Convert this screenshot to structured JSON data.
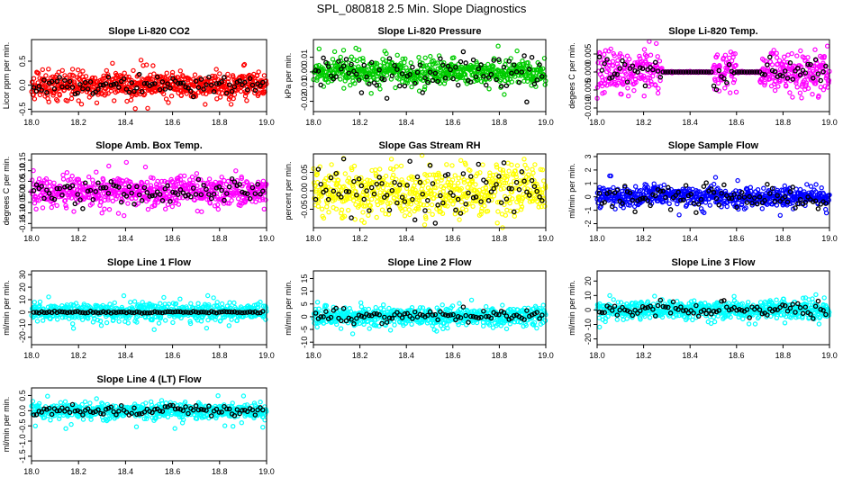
{
  "title": "SPL_080818  2.5 Min. Slope Diagnostics",
  "chart_data": [
    {
      "type": "scatter",
      "title": "Slope Li-820 CO2",
      "ylabel": "Licor ppm per min.",
      "color": "#ff0000",
      "xlim": [
        18.0,
        19.0
      ],
      "ylim": [
        -0.55,
        0.95
      ],
      "yticks": [
        -0.5,
        0.0,
        0.5
      ],
      "ytick_labels": [
        "-0.5",
        "0.0",
        "0.5"
      ],
      "xticks": [
        18.0,
        18.2,
        18.4,
        18.6,
        18.8,
        19.0
      ],
      "xtick_labels": [
        "18.0",
        "18.2",
        "18.4",
        "18.6",
        "18.8",
        "19.0"
      ],
      "spread": 0.14,
      "outlier": 0.5,
      "overlay_spread": 0.1,
      "seed": 11
    },
    {
      "type": "scatter",
      "title": "Slope Li-820 Pressure",
      "ylabel": "kPa per min.",
      "color": "#00cc00",
      "xlim": [
        18.0,
        19.0
      ],
      "ylim": [
        -0.027,
        0.022
      ],
      "yticks": [
        -0.02,
        -0.01,
        0.0,
        0.01
      ],
      "ytick_labels": [
        "-0.02",
        "-0.01",
        "0.00",
        "0.01"
      ],
      "xticks": [
        18.0,
        18.2,
        18.4,
        18.6,
        18.8,
        19.0
      ],
      "xtick_labels": [
        "18.0",
        "18.2",
        "18.4",
        "18.6",
        "18.8",
        "19.0"
      ],
      "spread": 0.004,
      "outlier": 0.018,
      "overlay_spread": 0.006,
      "seed": 23
    },
    {
      "type": "scatter",
      "title": "Slope Li-820 Temp.",
      "ylabel": "degees C per min.",
      "color": "#ff00ff",
      "xlim": [
        18.0,
        19.0
      ],
      "ylim": [
        -0.011,
        0.009
      ],
      "yticks": [
        -0.01,
        -0.005,
        0.0,
        0.005
      ],
      "ytick_labels": [
        "-0.010",
        "-0.005",
        "0.000",
        "0.005"
      ],
      "xticks": [
        18.0,
        18.2,
        18.4,
        18.6,
        18.8,
        19.0
      ],
      "xtick_labels": [
        "18.0",
        "18.2",
        "18.4",
        "18.6",
        "18.8",
        "19.0"
      ],
      "spread": 0.0028,
      "outlier": 0.008,
      "overlay_spread": 0.002,
      "seed": 37,
      "flat_ranges": [
        [
          18.28,
          18.5
        ],
        [
          18.6,
          18.7
        ]
      ]
    },
    {
      "type": "scatter",
      "title": "Slope Amb. Box Temp.",
      "ylabel": "degrees C per min.",
      "color": "#ff00ff",
      "xlim": [
        18.0,
        19.0
      ],
      "ylim": [
        -0.17,
        0.18
      ],
      "yticks": [
        -0.15,
        -0.1,
        -0.05,
        0.0,
        0.05,
        0.1,
        0.15
      ],
      "ytick_labels": [
        "-0.15",
        "-0.10",
        "-0.05",
        "0.00",
        "0.05",
        "0.10",
        "0.15"
      ],
      "xticks": [
        18.0,
        18.2,
        18.4,
        18.6,
        18.8,
        19.0
      ],
      "xtick_labels": [
        "18.0",
        "18.2",
        "18.4",
        "18.6",
        "18.8",
        "19.0"
      ],
      "spread": 0.035,
      "outlier": 0.14,
      "overlay_spread": 0.03,
      "seed": 41
    },
    {
      "type": "scatter",
      "title": "Slope Gas Stream RH",
      "ylabel": "percent per min.",
      "color": "#ffff00",
      "xlim": [
        18.0,
        19.0
      ],
      "ylim": [
        -0.1,
        0.1
      ],
      "yticks": [
        -0.05,
        0.0,
        0.05
      ],
      "ytick_labels": [
        "-0.05",
        "0.00",
        "0.05"
      ],
      "xticks": [
        18.0,
        18.2,
        18.4,
        18.6,
        18.8,
        19.0
      ],
      "xtick_labels": [
        "18.0",
        "18.2",
        "18.4",
        "18.6",
        "18.8",
        "19.0"
      ],
      "spread": 0.035,
      "outlier": 0.09,
      "overlay_spread": 0.04,
      "seed": 53
    },
    {
      "type": "scatter",
      "title": "Slope Sample Flow",
      "ylabel": "ml/min per min.",
      "color": "#0000ff",
      "xlim": [
        18.0,
        19.0
      ],
      "ylim": [
        -2.3,
        3.2
      ],
      "yticks": [
        -2,
        -1,
        0,
        1,
        2,
        3
      ],
      "ytick_labels": [
        "-2",
        "-1",
        "0",
        "1",
        "2",
        "3"
      ],
      "xticks": [
        18.0,
        18.2,
        18.4,
        18.6,
        18.8,
        19.0
      ],
      "xtick_labels": [
        "18.0",
        "18.2",
        "18.4",
        "18.6",
        "18.8",
        "19.0"
      ],
      "spread": 0.35,
      "outlier": 1.6,
      "overlay_spread": 0.5,
      "seed": 67
    },
    {
      "type": "scatter",
      "title": "Slope Line 1 Flow",
      "ylabel": "ml/min per min.",
      "color": "#00ffff",
      "xlim": [
        18.0,
        19.0
      ],
      "ylim": [
        -26,
        33
      ],
      "yticks": [
        -20,
        -10,
        0,
        10,
        20,
        30
      ],
      "ytick_labels": [
        "-20",
        "-10",
        "0",
        "10",
        "20",
        "30"
      ],
      "xticks": [
        18.0,
        18.2,
        18.4,
        18.6,
        18.8,
        19.0
      ],
      "xtick_labels": [
        "18.0",
        "18.2",
        "18.4",
        "18.6",
        "18.8",
        "19.0"
      ],
      "spread": 3.5,
      "outlier": 15,
      "overlay_spread": 0.4,
      "seed": 71
    },
    {
      "type": "scatter",
      "title": "Slope Line 2 Flow",
      "ylabel": "ml/min per min.",
      "color": "#00ffff",
      "xlim": [
        18.0,
        19.0
      ],
      "ylim": [
        -11,
        18
      ],
      "yticks": [
        -10,
        -5,
        0,
        5,
        10,
        15
      ],
      "ytick_labels": [
        "-10",
        "-5",
        "0",
        "5",
        "10",
        "15"
      ],
      "xticks": [
        18.0,
        18.2,
        18.4,
        18.6,
        18.8,
        19.0
      ],
      "xtick_labels": [
        "18.0",
        "18.2",
        "18.4",
        "18.6",
        "18.8",
        "19.0"
      ],
      "spread": 1.8,
      "outlier": 7,
      "overlay_spread": 1.2,
      "seed": 83
    },
    {
      "type": "scatter",
      "title": "Slope Line 3 Flow",
      "ylabel": "ml/min per min.",
      "color": "#00ffff",
      "xlim": [
        18.0,
        19.0
      ],
      "ylim": [
        -24,
        27
      ],
      "yticks": [
        -20,
        -10,
        0,
        10,
        20
      ],
      "ytick_labels": [
        "-20",
        "-10",
        "0",
        "10",
        "20"
      ],
      "xticks": [
        18.0,
        18.2,
        18.4,
        18.6,
        18.8,
        19.0
      ],
      "xtick_labels": [
        "18.0",
        "18.2",
        "18.4",
        "18.6",
        "18.8",
        "19.0"
      ],
      "spread": 3.2,
      "outlier": 12,
      "overlay_spread": 2.5,
      "seed": 97
    },
    {
      "type": "scatter",
      "title": "Slope Line 4 (LT) Flow",
      "ylabel": "ml/min per min.",
      "color": "#00ffff",
      "xlim": [
        18.0,
        19.0
      ],
      "ylim": [
        -1.65,
        0.75
      ],
      "yticks": [
        -1.5,
        -1.0,
        -0.5,
        0.0,
        0.5
      ],
      "ytick_labels": [
        "-1.5",
        "-1.0",
        "-0.5",
        "0.0",
        "0.5"
      ],
      "xticks": [
        18.0,
        18.2,
        18.4,
        18.6,
        18.8,
        19.0
      ],
      "xtick_labels": [
        "18.0",
        "18.2",
        "18.4",
        "18.6",
        "18.8",
        "19.0"
      ],
      "spread": 0.12,
      "outlier": 0.6,
      "overlay_spread": 0.08,
      "seed": 101
    }
  ]
}
